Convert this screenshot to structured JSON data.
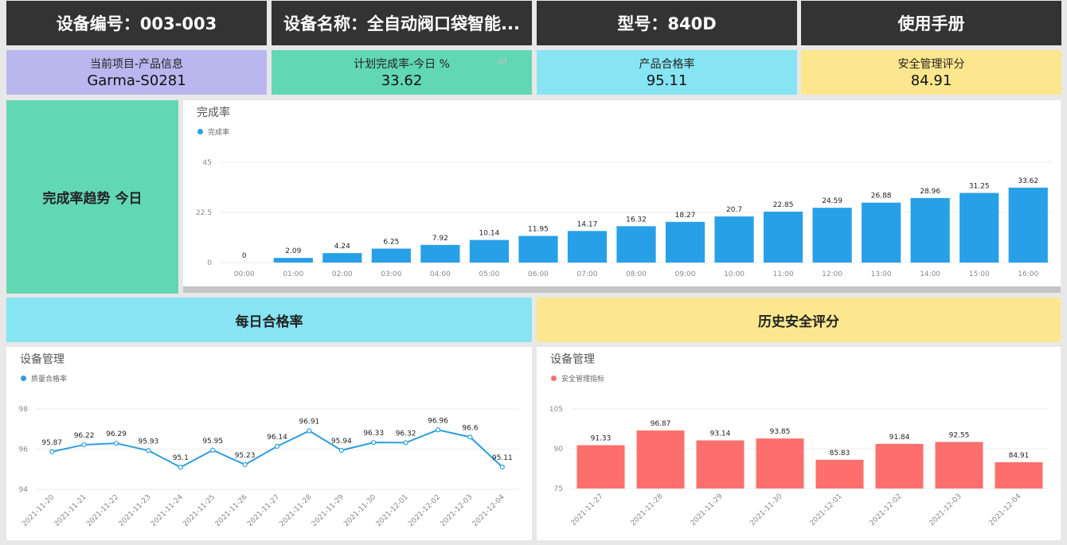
{
  "header": {
    "device_no": "设备编号：003-003",
    "device_name": "设备名称：全自动阀口袋智能...",
    "model": "型号：840D",
    "manual": "使用手册"
  },
  "kpis": {
    "project": {
      "label": "当前项目-产品信息",
      "value": "Garma-S0281"
    },
    "completion": {
      "label": "计划完成率-今日 %",
      "value": "33.62"
    },
    "pass_rate": {
      "label": "产品合格率",
      "value": "95.11"
    },
    "safety": {
      "label": "安全管理评分",
      "value": "84.91"
    }
  },
  "sections": {
    "trend_title": "完成率趋势 今日",
    "daily_pass_title": "每日合格率",
    "safety_history_title": "历史安全评分"
  },
  "colors": {
    "header_bg": "#333333",
    "purple": "#bab7ef",
    "green": "#62d7b3",
    "cyan": "#87e4f3",
    "yellow": "#fde78e",
    "bar_blue": "#28a0e8",
    "line_blue": "#2c9de0",
    "bar_red": "#fc6f6c"
  },
  "chart_data": [
    {
      "type": "bar",
      "title": "完成率",
      "series": [
        {
          "name": "完成率",
          "values": [
            0,
            2.09,
            4.24,
            6.25,
            7.92,
            10.14,
            11.95,
            14.17,
            16.32,
            18.27,
            20.7,
            22.85,
            24.59,
            26.88,
            28.96,
            31.25,
            33.62
          ]
        }
      ],
      "categories": [
        "00:00",
        "01:00",
        "02:00",
        "03:00",
        "04:00",
        "05:00",
        "06:00",
        "07:00",
        "08:00",
        "09:00",
        "10:00",
        "11:00",
        "12:00",
        "13:00",
        "14:00",
        "15:00",
        "16:00"
      ],
      "yticks": [
        "0",
        "22.5",
        "45"
      ],
      "ylim": [
        0,
        45
      ],
      "legend": "top-left",
      "grid": true
    },
    {
      "type": "line",
      "title": "设备管理",
      "series": [
        {
          "name": "质量合格率",
          "values": [
            95.87,
            96.22,
            96.29,
            95.93,
            95.1,
            95.95,
            95.23,
            96.14,
            96.91,
            95.94,
            96.33,
            96.32,
            96.96,
            96.6,
            95.11
          ]
        }
      ],
      "categories": [
        "2021-11-20",
        "2021-11-21",
        "2021-11-22",
        "2021-11-23",
        "2021-11-24",
        "2021-11-25",
        "2021-11-26",
        "2021-11-27",
        "2021-11-28",
        "2021-11-29",
        "2021-11-30",
        "2021-12-01",
        "2021-12-02",
        "2021-12-03",
        "2021-12-04"
      ],
      "yticks": [
        "94",
        "96",
        "98"
      ],
      "ylim": [
        94,
        98
      ],
      "legend": "top-left",
      "grid": true
    },
    {
      "type": "bar",
      "title": "设备管理",
      "series": [
        {
          "name": "安全管理指标",
          "values": [
            91.33,
            96.87,
            93.14,
            93.85,
            85.83,
            91.84,
            92.55,
            84.91
          ]
        }
      ],
      "categories": [
        "2021-11-27",
        "2021-11-28",
        "2021-11-29",
        "2021-11-30",
        "2021-12-01",
        "2021-12-02",
        "2021-12-03",
        "2021-12-04"
      ],
      "yticks": [
        "75",
        "90",
        "105"
      ],
      "ylim": [
        75,
        105
      ],
      "legend": "top-left",
      "grid": true
    }
  ]
}
